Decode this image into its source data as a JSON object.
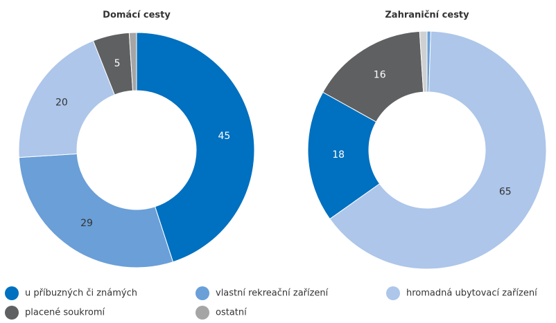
{
  "chart_data": [
    {
      "type": "pie",
      "title": "Domácí cesty",
      "values": [
        45,
        29,
        20,
        5,
        1
      ],
      "colors": [
        "#0070c0",
        "#6a9fd8",
        "#adc6ea",
        "#5f6062",
        "#a5a5a5"
      ]
    },
    {
      "type": "pie",
      "title": "Zahraniční cesty",
      "values": [
        0.5,
        65,
        18,
        16,
        1
      ],
      "colors": [
        "#6a9fd8",
        "#adc6ea",
        "#0070c0",
        "#5f6062",
        "#cfd0d2"
      ]
    }
  ],
  "legend": [
    {
      "name": "u příbuzných či známých",
      "color": "#0070c0"
    },
    {
      "name": "vlastní rekreační zařízení",
      "color": "#6a9fd8"
    },
    {
      "name": "hromadná ubytovací zařízení",
      "color": "#adc6ea"
    },
    {
      "name": "placené soukromí",
      "color": "#5f6062"
    },
    {
      "name": "ostatní",
      "color": "#a5a5a5"
    }
  ]
}
